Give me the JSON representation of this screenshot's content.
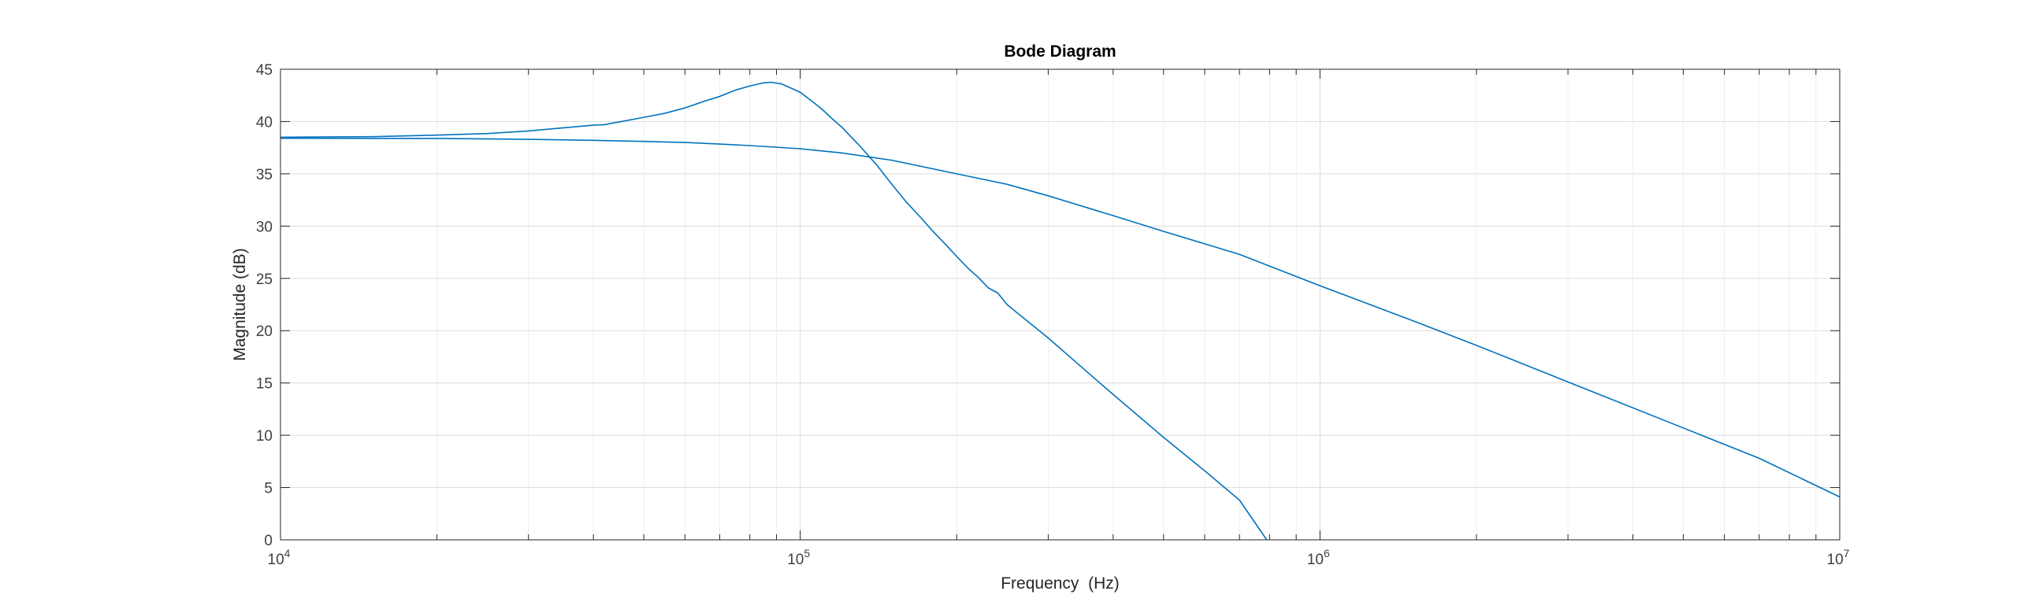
{
  "chart_data": {
    "type": "line",
    "title": "Bode Diagram",
    "xlabel": "Frequency  (Hz)",
    "ylabel": "Magnitude (dB)",
    "xscale": "log",
    "xlim": [
      10000,
      10000000
    ],
    "ylim": [
      0,
      45
    ],
    "x_ticks": [
      {
        "value": 10000,
        "base": "10",
        "exp": "4"
      },
      {
        "value": 100000,
        "base": "10",
        "exp": "5"
      },
      {
        "value": 1000000,
        "base": "10",
        "exp": "6"
      },
      {
        "value": 10000000,
        "base": "10",
        "exp": "7"
      }
    ],
    "y_ticks": [
      0,
      5,
      10,
      15,
      20,
      25,
      30,
      35,
      40,
      45
    ],
    "grid": true,
    "minor_grid": true,
    "colors": {
      "line": "#0072BD",
      "axes": "#262626",
      "grid": "#dcdcdc",
      "minor_grid": "#eeeeee",
      "tick_text": "#404040"
    },
    "series": [
      {
        "x": [
          10000,
          15000,
          20000,
          25000,
          30000,
          35000,
          40000,
          42000,
          50000,
          55000,
          60000,
          65000,
          70000,
          75000,
          80000,
          85000,
          88000,
          92000,
          95000,
          100000,
          105000,
          110000,
          115000,
          120000,
          130000,
          140000,
          150000,
          160000,
          170000,
          180000,
          190000,
          200000,
          210000,
          220000,
          230000,
          240000,
          250000,
          260000,
          300000,
          350000,
          400000,
          500000,
          600000,
          700000,
          790000
        ],
        "y": [
          38.5,
          38.55,
          38.7,
          38.85,
          39.1,
          39.4,
          39.65,
          39.7,
          40.4,
          40.8,
          41.3,
          41.9,
          42.4,
          43.0,
          43.4,
          43.7,
          43.75,
          43.6,
          43.3,
          42.8,
          42.0,
          41.2,
          40.3,
          39.5,
          37.7,
          35.9,
          34.0,
          32.3,
          30.9,
          29.5,
          28.3,
          27.1,
          26.0,
          25.1,
          24.1,
          23.6,
          22.5,
          21.8,
          19.3,
          16.4,
          13.9,
          9.8,
          6.6,
          3.8,
          0
        ]
      },
      {
        "x": [
          10000,
          20000,
          30000,
          40000,
          50000,
          60000,
          70000,
          80000,
          100000,
          120000,
          150000,
          200000,
          250000,
          300000,
          400000,
          500000,
          700000,
          1000000,
          1500000,
          2000000,
          3000000,
          5000000,
          7000000,
          10000000
        ],
        "y": [
          38.4,
          38.38,
          38.3,
          38.2,
          38.1,
          38.0,
          37.85,
          37.7,
          37.4,
          37.0,
          36.3,
          35.0,
          34.0,
          32.9,
          31.0,
          29.5,
          27.3,
          24.3,
          21.0,
          18.6,
          15.1,
          10.7,
          7.8,
          4.1
        ]
      }
    ]
  }
}
